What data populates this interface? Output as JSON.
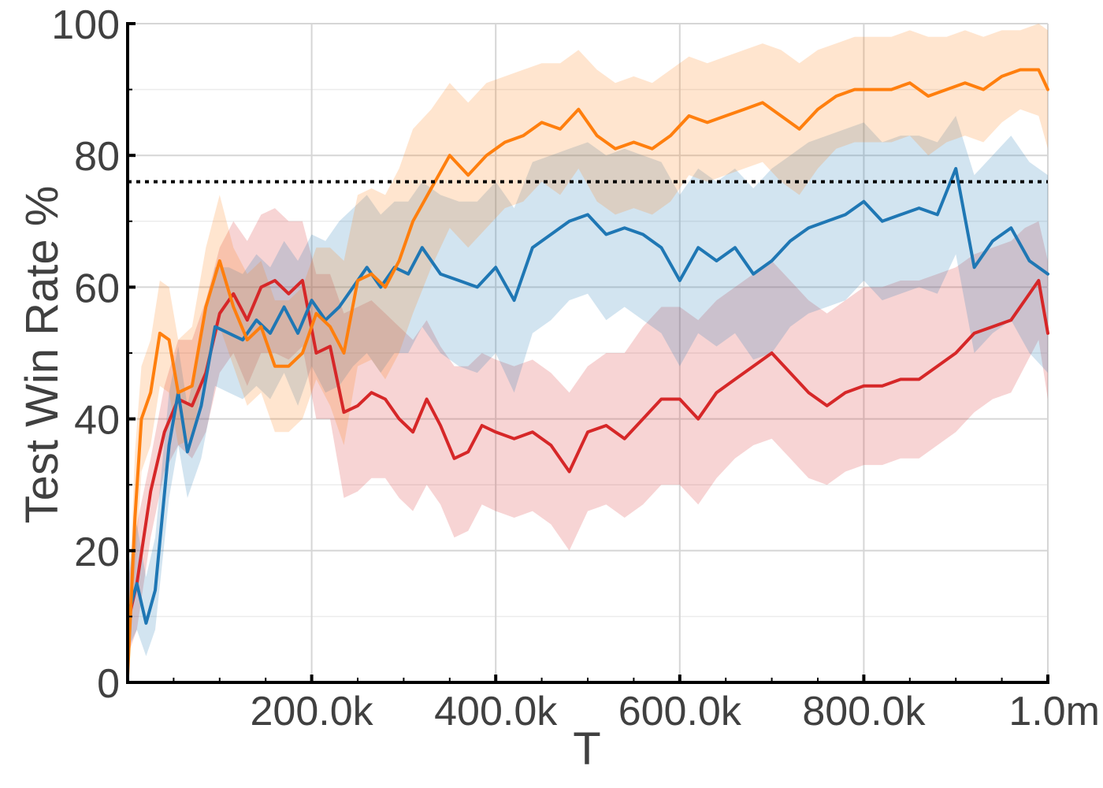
{
  "chart_data": {
    "type": "line",
    "title": "",
    "xlabel": "T",
    "ylabel": "Test Win Rate %",
    "xlim": [
      0,
      1000000
    ],
    "ylim": [
      0,
      100
    ],
    "x_ticks": [
      200000,
      400000,
      600000,
      800000,
      1000000
    ],
    "x_tick_labels": [
      "200.0k",
      "400.0k",
      "600.0k",
      "800.0k",
      "1.0m"
    ],
    "y_ticks": [
      0,
      20,
      40,
      60,
      80,
      100
    ],
    "y_tick_labels": [
      "0",
      "20",
      "40",
      "60",
      "80",
      "100"
    ],
    "grid": true,
    "reference_line": {
      "y": 76,
      "style": "dotted",
      "color": "#000000"
    },
    "series": [
      {
        "color": "#d62728",
        "x": [
          0,
          10000,
          25000,
          40000,
          55000,
          70000,
          85000,
          100000,
          115000,
          130000,
          145000,
          160000,
          175000,
          190000,
          205000,
          220000,
          235000,
          250000,
          265000,
          280000,
          295000,
          310000,
          325000,
          340000,
          355000,
          370000,
          385000,
          400000,
          420000,
          440000,
          460000,
          480000,
          500000,
          520000,
          540000,
          560000,
          580000,
          600000,
          620000,
          640000,
          660000,
          680000,
          700000,
          720000,
          740000,
          760000,
          780000,
          800000,
          820000,
          840000,
          860000,
          880000,
          900000,
          920000,
          940000,
          960000,
          975000,
          990000,
          1000000
        ],
        "values": [
          9,
          15,
          29,
          38,
          43,
          42,
          47,
          56,
          59,
          55,
          60,
          61,
          59,
          61,
          50,
          51,
          41,
          42,
          44,
          43,
          40,
          38,
          43,
          39,
          34,
          35,
          39,
          38,
          37,
          38,
          36,
          32,
          38,
          39,
          37,
          40,
          43,
          43,
          40,
          44,
          46,
          48,
          50,
          47,
          44,
          42,
          44,
          45,
          45,
          46,
          46,
          48,
          50,
          53,
          54,
          55,
          58,
          61,
          53
        ],
        "upper": [
          15,
          24,
          34,
          45,
          52,
          52,
          58,
          66,
          70,
          67,
          71,
          72,
          70,
          70,
          62,
          62,
          56,
          57,
          58,
          56,
          54,
          52,
          55,
          51,
          48,
          48,
          50,
          49,
          48,
          49,
          47,
          44,
          48,
          50,
          50,
          54,
          57,
          57,
          55,
          58,
          60,
          62,
          64,
          61,
          58,
          56,
          58,
          60,
          60,
          61,
          61,
          62,
          63,
          65,
          66,
          67,
          69,
          70,
          64
        ],
        "lower": [
          4,
          8,
          22,
          32,
          36,
          34,
          38,
          47,
          50,
          45,
          50,
          50,
          49,
          51,
          40,
          40,
          28,
          29,
          31,
          31,
          28,
          26,
          30,
          27,
          22,
          23,
          27,
          26,
          25,
          26,
          24,
          20,
          26,
          27,
          25,
          27,
          30,
          30,
          27,
          31,
          34,
          36,
          37,
          34,
          31,
          30,
          32,
          33,
          33,
          34,
          34,
          36,
          38,
          41,
          43,
          44,
          48,
          52,
          43
        ]
      },
      {
        "color": "#1f77b4",
        "x": [
          0,
          10000,
          20000,
          30000,
          45000,
          55000,
          65000,
          80000,
          95000,
          110000,
          125000,
          140000,
          155000,
          170000,
          185000,
          200000,
          215000,
          230000,
          245000,
          260000,
          275000,
          290000,
          305000,
          320000,
          340000,
          360000,
          380000,
          400000,
          420000,
          440000,
          460000,
          480000,
          500000,
          520000,
          540000,
          560000,
          580000,
          600000,
          620000,
          640000,
          660000,
          680000,
          700000,
          720000,
          740000,
          760000,
          780000,
          800000,
          820000,
          840000,
          860000,
          880000,
          900000,
          920000,
          940000,
          960000,
          980000,
          1000000
        ],
        "values": [
          10,
          15,
          9,
          14,
          36,
          44,
          35,
          42,
          54,
          53,
          52,
          55,
          53,
          57,
          53,
          58,
          55,
          57,
          60,
          63,
          60,
          63,
          62,
          66,
          62,
          61,
          60,
          63,
          58,
          66,
          68,
          70,
          71,
          68,
          69,
          68,
          66,
          61,
          66,
          64,
          66,
          62,
          64,
          67,
          69,
          70,
          71,
          73,
          70,
          71,
          72,
          71,
          78,
          63,
          67,
          69,
          64,
          62
        ],
        "upper": [
          17,
          24,
          16,
          22,
          44,
          51,
          42,
          52,
          63,
          63,
          62,
          65,
          63,
          67,
          64,
          68,
          67,
          70,
          72,
          74,
          71,
          73,
          73,
          76,
          74,
          73,
          73,
          76,
          72,
          79,
          80,
          81,
          82,
          80,
          81,
          80,
          79,
          74,
          78,
          76,
          78,
          75,
          78,
          80,
          82,
          83,
          84,
          85,
          82,
          83,
          83,
          82,
          86,
          77,
          80,
          83,
          79,
          77
        ],
        "lower": [
          5,
          8,
          4,
          8,
          28,
          36,
          28,
          34,
          45,
          44,
          43,
          45,
          43,
          47,
          42,
          48,
          44,
          45,
          48,
          50,
          47,
          50,
          50,
          54,
          50,
          48,
          47,
          50,
          44,
          53,
          55,
          58,
          59,
          55,
          57,
          55,
          53,
          48,
          53,
          51,
          53,
          49,
          50,
          54,
          56,
          57,
          58,
          61,
          58,
          59,
          60,
          59,
          65,
          50,
          53,
          55,
          50,
          47
        ]
      },
      {
        "color": "#ff7f0e",
        "x": [
          0,
          8000,
          15000,
          25000,
          35000,
          45000,
          55000,
          70000,
          85000,
          100000,
          115000,
          130000,
          145000,
          160000,
          175000,
          190000,
          205000,
          220000,
          235000,
          250000,
          265000,
          280000,
          295000,
          310000,
          330000,
          350000,
          370000,
          390000,
          410000,
          430000,
          450000,
          470000,
          490000,
          510000,
          530000,
          550000,
          570000,
          590000,
          610000,
          630000,
          650000,
          670000,
          690000,
          710000,
          730000,
          750000,
          770000,
          790000,
          810000,
          830000,
          850000,
          870000,
          890000,
          910000,
          930000,
          950000,
          970000,
          990000,
          1000000
        ],
        "values": [
          1,
          25,
          40,
          44,
          53,
          52,
          44,
          45,
          57,
          64,
          57,
          52,
          54,
          48,
          48,
          50,
          56,
          54,
          50,
          61,
          62,
          60,
          64,
          70,
          75,
          80,
          77,
          80,
          82,
          83,
          85,
          84,
          87,
          83,
          81,
          82,
          81,
          83,
          86,
          85,
          86,
          87,
          88,
          86,
          84,
          87,
          89,
          90,
          90,
          90,
          91,
          89,
          90,
          91,
          90,
          92,
          93,
          93,
          90
        ],
        "upper": [
          6,
          35,
          48,
          52,
          61,
          60,
          52,
          54,
          66,
          74,
          66,
          62,
          64,
          58,
          58,
          60,
          66,
          66,
          64,
          74,
          75,
          74,
          78,
          84,
          87,
          91,
          88,
          91,
          92,
          93,
          94,
          94,
          96,
          93,
          91,
          92,
          91,
          93,
          95,
          94,
          95,
          96,
          97,
          96,
          94,
          96,
          97,
          98,
          98,
          98,
          99,
          98,
          98,
          99,
          98,
          99,
          99,
          100,
          99
        ],
        "lower": [
          0,
          16,
          32,
          36,
          45,
          44,
          36,
          37,
          48,
          54,
          48,
          42,
          44,
          38,
          38,
          40,
          46,
          42,
          36,
          48,
          49,
          46,
          50,
          56,
          63,
          69,
          66,
          69,
          72,
          73,
          76,
          74,
          78,
          73,
          71,
          72,
          71,
          73,
          77,
          76,
          77,
          78,
          79,
          76,
          74,
          78,
          81,
          82,
          82,
          82,
          83,
          80,
          82,
          83,
          82,
          85,
          87,
          86,
          81
        ]
      }
    ]
  }
}
